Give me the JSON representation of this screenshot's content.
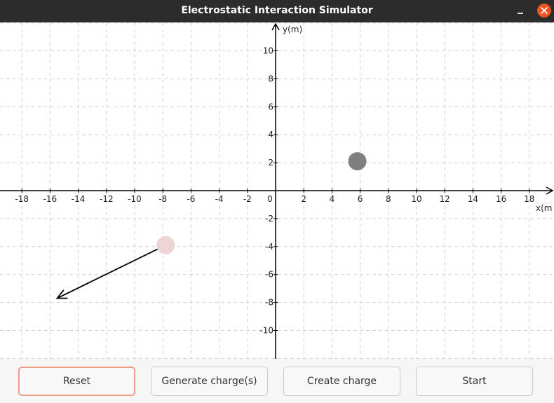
{
  "window": {
    "title": "Electrostatic Interaction Simulator",
    "controls": {
      "minimize_icon": "minimize-icon",
      "close_icon": "close-icon"
    }
  },
  "plot": {
    "x_axis_label": "x(m",
    "y_axis_label": "y(m)",
    "x_range": [
      -19.5,
      19.8
    ],
    "y_range": [
      -12,
      12
    ],
    "grid": true,
    "x_ticks": [
      -18,
      -16,
      -14,
      -12,
      -10,
      -8,
      -6,
      -4,
      -2,
      2,
      4,
      6,
      8,
      10,
      12,
      14,
      16,
      18
    ],
    "y_ticks": [
      -10,
      -8,
      -6,
      -4,
      -2,
      2,
      4,
      6,
      8,
      10
    ],
    "origin_label": "0",
    "charges": [
      {
        "x": 5.8,
        "y": 2.1,
        "color": "#7f7f7f",
        "role": "fixed"
      },
      {
        "x": -7.8,
        "y": -3.9,
        "color": "#efd4d4",
        "role": "placed"
      }
    ],
    "force_vector": {
      "from": [
        -7.8,
        -3.9
      ],
      "to": [
        -15.5,
        -7.7
      ],
      "color": "#000000"
    }
  },
  "buttons": {
    "reset": "Reset",
    "generate": "Generate charge(s)",
    "create": "Create charge",
    "start": "Start"
  }
}
